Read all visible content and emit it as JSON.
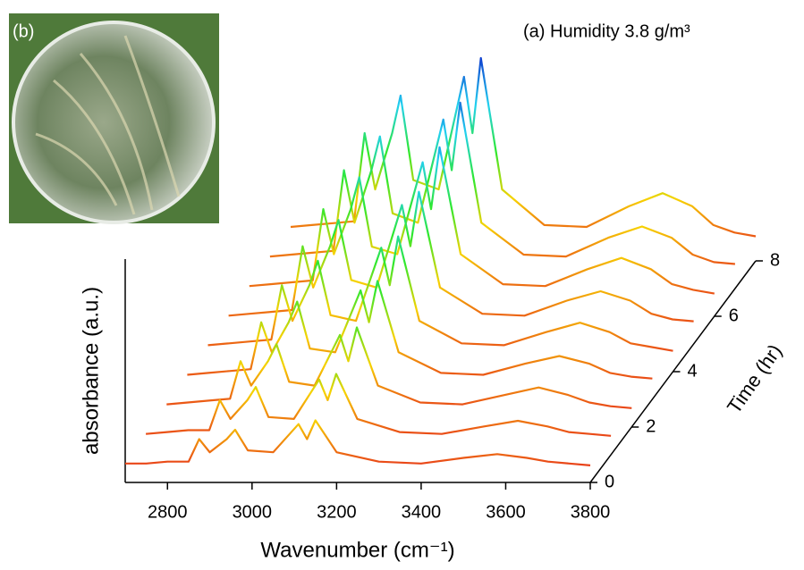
{
  "chart_data": {
    "type": "waterfall",
    "title": "(a) Humidity 3.8 g/m³",
    "xlabel": "Wavenumber (cm⁻¹)",
    "ylabel": "absorbance (a.u.)",
    "zlabel": "Time (hr)",
    "xlim": [
      2700,
      3800
    ],
    "xticks": [
      2800,
      3000,
      3200,
      3400,
      3600,
      3800
    ],
    "zlim": [
      0,
      8
    ],
    "zticks": [
      0,
      2,
      4,
      6,
      8
    ],
    "ylim": [
      0,
      1
    ],
    "colormap": [
      "#e83a1a",
      "#f7d200",
      "#2ee82e",
      "#22d0f0",
      "#1040d0"
    ],
    "x": [
      2700,
      2750,
      2800,
      2850,
      2875,
      2900,
      2940,
      2960,
      2990,
      3050,
      3110,
      3130,
      3150,
      3200,
      3300,
      3400,
      3500,
      3580,
      3650,
      3700,
      3750,
      3800
    ],
    "series": [
      {
        "z": 0,
        "values": [
          0.02,
          0.02,
          0.03,
          0.03,
          0.15,
          0.08,
          0.15,
          0.2,
          0.09,
          0.08,
          0.23,
          0.15,
          0.25,
          0.08,
          0.03,
          0.02,
          0.05,
          0.07,
          0.05,
          0.03,
          0.02,
          0.01
        ]
      },
      {
        "z": 1,
        "values": [
          0.03,
          0.04,
          0.05,
          0.05,
          0.21,
          0.11,
          0.21,
          0.28,
          0.12,
          0.11,
          0.32,
          0.21,
          0.35,
          0.11,
          0.04,
          0.03,
          0.07,
          0.1,
          0.07,
          0.04,
          0.03,
          0.02
        ]
      },
      {
        "z": 2,
        "values": [
          0.04,
          0.05,
          0.06,
          0.07,
          0.27,
          0.14,
          0.27,
          0.36,
          0.16,
          0.14,
          0.41,
          0.27,
          0.45,
          0.14,
          0.05,
          0.04,
          0.09,
          0.13,
          0.09,
          0.05,
          0.03,
          0.02
        ]
      },
      {
        "z": 3,
        "values": [
          0.05,
          0.06,
          0.07,
          0.08,
          0.33,
          0.17,
          0.33,
          0.44,
          0.19,
          0.17,
          0.5,
          0.33,
          0.55,
          0.17,
          0.06,
          0.05,
          0.11,
          0.15,
          0.11,
          0.06,
          0.04,
          0.03
        ]
      },
      {
        "z": 4,
        "values": [
          0.06,
          0.07,
          0.08,
          0.09,
          0.38,
          0.19,
          0.38,
          0.51,
          0.22,
          0.19,
          0.58,
          0.38,
          0.64,
          0.19,
          0.07,
          0.06,
          0.13,
          0.18,
          0.13,
          0.07,
          0.05,
          0.03
        ]
      },
      {
        "z": 5,
        "values": [
          0.07,
          0.08,
          0.09,
          0.1,
          0.44,
          0.22,
          0.44,
          0.58,
          0.26,
          0.22,
          0.66,
          0.44,
          0.73,
          0.22,
          0.08,
          0.07,
          0.15,
          0.2,
          0.15,
          0.08,
          0.05,
          0.04
        ]
      },
      {
        "z": 6,
        "values": [
          0.08,
          0.09,
          0.1,
          0.11,
          0.49,
          0.25,
          0.49,
          0.66,
          0.29,
          0.25,
          0.74,
          0.49,
          0.82,
          0.25,
          0.09,
          0.08,
          0.17,
          0.23,
          0.17,
          0.09,
          0.06,
          0.04
        ]
      },
      {
        "z": 7,
        "values": [
          0.09,
          0.1,
          0.11,
          0.12,
          0.55,
          0.27,
          0.55,
          0.73,
          0.32,
          0.27,
          0.82,
          0.55,
          0.91,
          0.27,
          0.1,
          0.09,
          0.19,
          0.25,
          0.19,
          0.1,
          0.06,
          0.05
        ]
      },
      {
        "z": 8,
        "values": [
          0.1,
          0.11,
          0.12,
          0.13,
          0.6,
          0.3,
          0.6,
          0.8,
          0.35,
          0.3,
          0.9,
          0.6,
          1.0,
          0.3,
          0.11,
          0.1,
          0.21,
          0.28,
          0.21,
          0.11,
          0.07,
          0.05
        ]
      }
    ]
  },
  "inset": {
    "label": "(b)"
  }
}
